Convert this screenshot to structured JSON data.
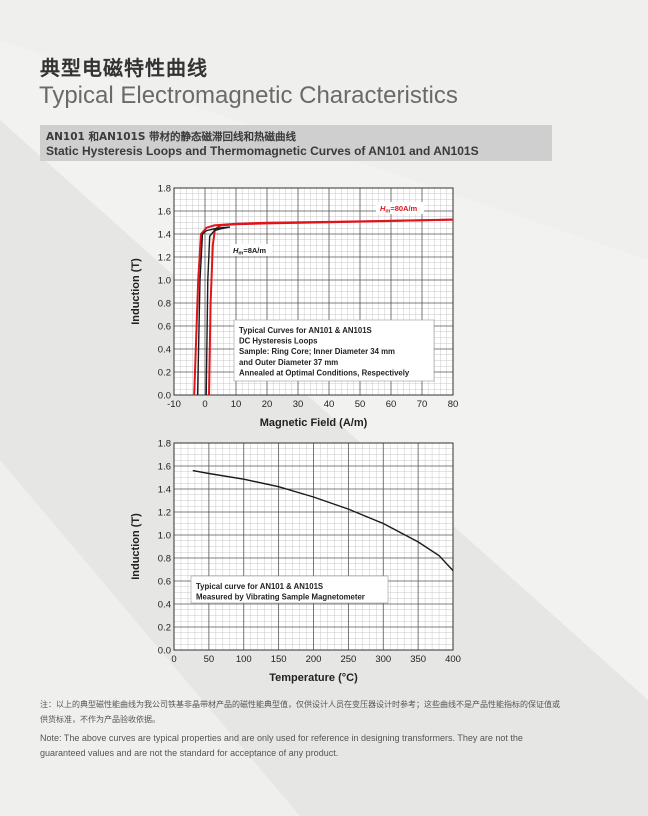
{
  "header": {
    "title_cn": "典型电磁特性曲线",
    "title_en": "Typical Electromagnetic Characteristics"
  },
  "section": {
    "title_cn": "AN101 和AN101S 带材的静态磁滞回线和热磁曲线",
    "title_en": "Static Hysteresis Loops and Thermomagnetic Curves of AN101 and AN101S"
  },
  "colors": {
    "loop_80": "#e0141b",
    "loop_8": "#1a1a1a",
    "curve": "#1a1a1a",
    "grid": "#555555"
  },
  "chart_data": [
    {
      "type": "line",
      "xlabel": "Magnetic Field (A/m)",
      "ylabel": "Induction (T)",
      "xlim": [
        -10,
        80
      ],
      "ylim": [
        0.0,
        1.8
      ],
      "x_ticks": [
        "-10",
        "0",
        "10",
        "20",
        "30",
        "40",
        "50",
        "60",
        "70",
        "80"
      ],
      "y_ticks": [
        "0.0",
        "0.2",
        "0.4",
        "0.6",
        "0.8",
        "1.0",
        "1.2",
        "1.4",
        "1.6",
        "1.8"
      ],
      "grid": true,
      "series": [
        {
          "name": "Hm=80A/m",
          "label_h": "H",
          "label_sub": "m",
          "label_rest": "=80A/m",
          "color": "#e0141b",
          "upper": [
            [
              -3.5,
              0
            ],
            [
              -2.2,
              1.0
            ],
            [
              -1.3,
              1.4
            ],
            [
              0.5,
              1.455
            ],
            [
              3,
              1.475
            ],
            [
              10,
              1.49
            ],
            [
              20,
              1.497
            ],
            [
              40,
              1.505
            ],
            [
              60,
              1.515
            ],
            [
              80,
              1.525
            ]
          ],
          "lower": [
            [
              80,
              1.525
            ],
            [
              60,
              1.513
            ],
            [
              40,
              1.503
            ],
            [
              20,
              1.492
            ],
            [
              10,
              1.485
            ],
            [
              5,
              1.475
            ],
            [
              3.2,
              1.44
            ],
            [
              2.5,
              1.3
            ],
            [
              1.8,
              0.8
            ],
            [
              1.3,
              0
            ]
          ]
        },
        {
          "name": "Hm=8A/m",
          "label_h": "H",
          "label_sub": "m",
          "label_rest": "=8A/m",
          "color": "#1a1a1a",
          "upper": [
            [
              -2.4,
              0
            ],
            [
              -1.6,
              1.0
            ],
            [
              -0.8,
              1.4
            ],
            [
              0.5,
              1.43
            ],
            [
              3,
              1.445
            ],
            [
              5.5,
              1.455
            ],
            [
              8,
              1.46
            ]
          ],
          "lower": [
            [
              8,
              1.46
            ],
            [
              5.5,
              1.448
            ],
            [
              3,
              1.43
            ],
            [
              1.5,
              1.38
            ],
            [
              0.9,
              1.0
            ],
            [
              0.4,
              0
            ]
          ]
        }
      ],
      "annotation": [
        "Typical Curves for AN101  & AN101S",
        "DC Hysteresis Loops",
        "Sample: Ring Core; Inner Diameter 34 mm",
        "and Outer Diameter 37 mm",
        "Annealed at Optimal Conditions, Respectively"
      ]
    },
    {
      "type": "line",
      "xlabel": "Temperature (°C)",
      "ylabel": "Induction (T)",
      "xlim": [
        0,
        400
      ],
      "ylim": [
        0.0,
        1.8
      ],
      "x_ticks": [
        "0",
        "50",
        "100",
        "150",
        "200",
        "250",
        "300",
        "350",
        "400"
      ],
      "y_ticks": [
        "0.0",
        "0.2",
        "0.4",
        "0.6",
        "0.8",
        "1.0",
        "1.2",
        "1.4",
        "1.6",
        "1.8"
      ],
      "grid": true,
      "series": [
        {
          "color": "#1a1a1a",
          "points": [
            [
              27,
              1.56
            ],
            [
              50,
              1.535
            ],
            [
              100,
              1.485
            ],
            [
              150,
              1.42
            ],
            [
              200,
              1.33
            ],
            [
              250,
              1.225
            ],
            [
              300,
              1.1
            ],
            [
              350,
              0.94
            ],
            [
              380,
              0.82
            ],
            [
              400,
              0.69
            ]
          ]
        }
      ],
      "annotation": [
        "Typical curve for AN101  & AN101S",
        "Measured by Vibrating Sample Magnetometer"
      ]
    }
  ],
  "notes": {
    "cn": "注：以上的典型磁性能曲线为我公司铁基非晶带材产品的磁性能典型值，仅供设计人员在变压器设计时参考；这些曲线不是产品性能指标的保证值或供货标准，不作为产品验收依据。",
    "en": "Note: The above curves are typical properties and are only used for reference in designing transformers. They are not the guaranteed values and are not the standard for acceptance of any product."
  }
}
